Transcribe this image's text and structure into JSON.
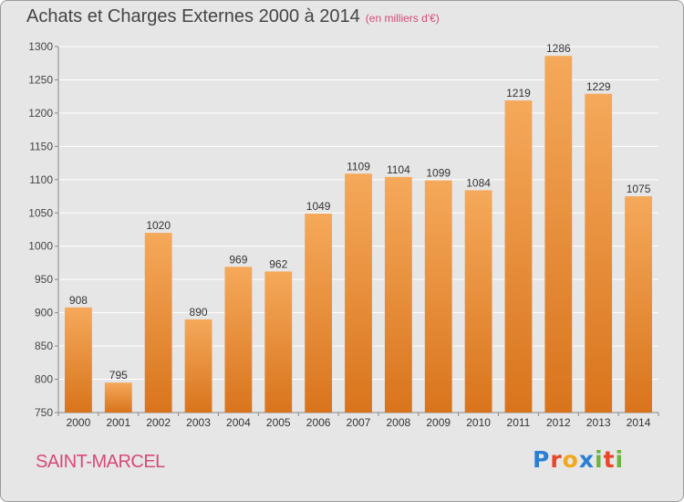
{
  "title": "Achats et Charges Externes 2000 à 2014",
  "subtitle": "(en milliers d'€)",
  "commune": "SAINT-MARCEL",
  "logo": {
    "text": "Proxiti",
    "letter_colors": [
      "#2a7fd4",
      "#e8462a",
      "#f2a81c",
      "#2a7fd4",
      "#6db33f",
      "#e8462a",
      "#6db33f"
    ]
  },
  "colors": {
    "bar_top": "#f5a95a",
    "bar_bottom": "#d9741c",
    "grid": "#ffffff",
    "background": "#e6e6e6"
  },
  "chart_data": {
    "type": "bar",
    "categories": [
      "2000",
      "2001",
      "2002",
      "2003",
      "2004",
      "2005",
      "2006",
      "2007",
      "2008",
      "2009",
      "2010",
      "2011",
      "2012",
      "2013",
      "2014"
    ],
    "values": [
      908,
      795,
      1020,
      890,
      969,
      962,
      1049,
      1109,
      1104,
      1099,
      1084,
      1219,
      1286,
      1229,
      1075
    ],
    "ylim": [
      750,
      1300
    ],
    "yticks": [
      750,
      800,
      850,
      900,
      950,
      1000,
      1050,
      1100,
      1150,
      1200,
      1250,
      1300
    ],
    "grid": true,
    "legend": "none"
  }
}
